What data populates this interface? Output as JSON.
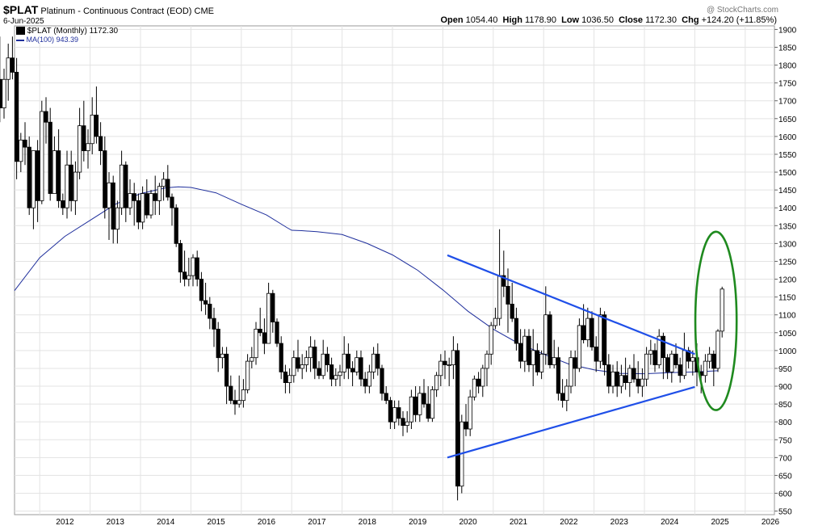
{
  "header": {
    "symbol": "$PLAT",
    "title": "Platinum - Continuous Contract (EOD)",
    "exchange": "CME",
    "date": "6-Jun-2025",
    "watermark": "@ StockCharts.com",
    "ohlc": {
      "open_label": "Open",
      "open": "1054.40",
      "high_label": "High",
      "high": "1178.90",
      "low_label": "Low",
      "low": "1036.50",
      "close_label": "Close",
      "close": "1172.30",
      "chg_label": "Chg",
      "chg": "+124.20 (+11.85%)"
    }
  },
  "legend": {
    "price_label": "$PLAT (Monthly) 1172.30",
    "ma_label": "MA(100) 943.39"
  },
  "colors": {
    "up": "#ffffff",
    "down": "#000000",
    "ma": "#1f2f9c",
    "trendline": "#1f4fe8",
    "circle": "#1f8a1f",
    "grid": "#e3e3e3"
  },
  "chart_data": {
    "type": "candlestick",
    "interval": "monthly",
    "x_tick_labels": [
      "2012",
      "2013",
      "2014",
      "2015",
      "2016",
      "2017",
      "2018",
      "2019",
      "2020",
      "2021",
      "2022",
      "2023",
      "2024",
      "2025",
      "2026"
    ],
    "y_tick_labels": [
      550,
      600,
      650,
      700,
      750,
      800,
      850,
      900,
      950,
      1000,
      1050,
      1100,
      1150,
      1200,
      1250,
      1300,
      1350,
      1400,
      1450,
      1500,
      1550,
      1600,
      1650,
      1700,
      1750,
      1800,
      1850,
      1900
    ],
    "ylim": [
      540,
      1910
    ],
    "xlim": [
      2011.5,
      2026.58
    ],
    "grid": true,
    "price_axis_position": "right",
    "candles": [
      [
        1780,
        1840,
        1700,
        1830
      ],
      [
        1830,
        1870,
        1720,
        1760
      ],
      [
        1760,
        1880,
        1640,
        1680
      ],
      [
        1680,
        1790,
        1650,
        1760
      ],
      [
        1760,
        1860,
        1700,
        1820
      ],
      [
        1820,
        1880,
        1760,
        1780
      ],
      [
        1780,
        1820,
        1480,
        1530
      ],
      [
        1530,
        1610,
        1500,
        1590
      ],
      [
        1590,
        1640,
        1520,
        1570
      ],
      [
        1570,
        1600,
        1380,
        1400
      ],
      [
        1400,
        1560,
        1340,
        1560
      ],
      [
        1560,
        1590,
        1360,
        1420
      ],
      [
        1420,
        1700,
        1410,
        1670
      ],
      [
        1670,
        1710,
        1580,
        1640
      ],
      [
        1640,
        1680,
        1420,
        1440
      ],
      [
        1440,
        1600,
        1440,
        1560
      ],
      [
        1560,
        1620,
        1400,
        1420
      ],
      [
        1420,
        1440,
        1380,
        1400
      ],
      [
        1400,
        1560,
        1370,
        1520
      ],
      [
        1520,
        1560,
        1390,
        1420
      ],
      [
        1420,
        1530,
        1380,
        1500
      ],
      [
        1500,
        1680,
        1480,
        1630
      ],
      [
        1630,
        1700,
        1530,
        1560
      ],
      [
        1560,
        1620,
        1510,
        1580
      ],
      [
        1580,
        1710,
        1550,
        1660
      ],
      [
        1660,
        1740,
        1580,
        1600
      ],
      [
        1600,
        1640,
        1520,
        1560
      ],
      [
        1560,
        1600,
        1370,
        1400
      ],
      [
        1400,
        1500,
        1310,
        1470
      ],
      [
        1470,
        1490,
        1300,
        1340
      ],
      [
        1340,
        1420,
        1300,
        1400
      ],
      [
        1400,
        1560,
        1380,
        1520
      ],
      [
        1520,
        1530,
        1360,
        1400
      ],
      [
        1400,
        1480,
        1380,
        1440
      ],
      [
        1440,
        1470,
        1350,
        1420
      ],
      [
        1420,
        1440,
        1340,
        1360
      ],
      [
        1360,
        1460,
        1340,
        1440
      ],
      [
        1440,
        1480,
        1370,
        1380
      ],
      [
        1380,
        1450,
        1370,
        1440
      ],
      [
        1440,
        1490,
        1380,
        1420
      ],
      [
        1420,
        1470,
        1380,
        1460
      ],
      [
        1460,
        1500,
        1420,
        1480
      ],
      [
        1480,
        1520,
        1420,
        1430
      ],
      [
        1430,
        1440,
        1350,
        1400
      ],
      [
        1400,
        1410,
        1290,
        1300
      ],
      [
        1300,
        1310,
        1190,
        1220
      ],
      [
        1220,
        1280,
        1180,
        1200
      ],
      [
        1200,
        1260,
        1180,
        1210
      ],
      [
        1210,
        1270,
        1180,
        1260
      ],
      [
        1260,
        1280,
        1180,
        1200
      ],
      [
        1200,
        1220,
        1110,
        1140
      ],
      [
        1140,
        1190,
        1100,
        1130
      ],
      [
        1130,
        1150,
        1060,
        1090
      ],
      [
        1090,
        1120,
        1010,
        1060
      ],
      [
        1060,
        1080,
        940,
        980
      ],
      [
        980,
        1010,
        950,
        990
      ],
      [
        990,
        1010,
        850,
        900
      ],
      [
        900,
        930,
        850,
        860
      ],
      [
        860,
        890,
        820,
        850
      ],
      [
        850,
        930,
        840,
        860
      ],
      [
        860,
        920,
        840,
        890
      ],
      [
        890,
        990,
        880,
        970
      ],
      [
        970,
        1010,
        950,
        980
      ],
      [
        980,
        1080,
        960,
        1060
      ],
      [
        1060,
        1120,
        1040,
        1050
      ],
      [
        1050,
        1090,
        990,
        1020
      ],
      [
        1020,
        1190,
        1020,
        1160
      ],
      [
        1160,
        1170,
        1050,
        1080
      ],
      [
        1080,
        1090,
        1010,
        1020
      ],
      [
        1020,
        1040,
        920,
        940
      ],
      [
        940,
        960,
        880,
        910
      ],
      [
        910,
        950,
        880,
        930
      ],
      [
        930,
        1000,
        910,
        980
      ],
      [
        980,
        1030,
        940,
        950
      ],
      [
        950,
        990,
        920,
        960
      ],
      [
        960,
        1000,
        940,
        980
      ],
      [
        980,
        1040,
        940,
        1010
      ],
      [
        1010,
        1030,
        920,
        950
      ],
      [
        950,
        970,
        920,
        930
      ],
      [
        930,
        1030,
        920,
        990
      ],
      [
        990,
        1010,
        940,
        960
      ],
      [
        960,
        980,
        900,
        920
      ],
      [
        920,
        950,
        900,
        930
      ],
      [
        930,
        960,
        900,
        940
      ],
      [
        940,
        1040,
        920,
        990
      ],
      [
        990,
        1020,
        920,
        950
      ],
      [
        950,
        970,
        900,
        940
      ],
      [
        940,
        1000,
        930,
        980
      ],
      [
        980,
        1000,
        900,
        920
      ],
      [
        920,
        940,
        880,
        900
      ],
      [
        900,
        960,
        880,
        940
      ],
      [
        940,
        1010,
        920,
        990
      ],
      [
        990,
        1020,
        930,
        950
      ],
      [
        950,
        960,
        860,
        880
      ],
      [
        880,
        900,
        850,
        860
      ],
      [
        860,
        870,
        780,
        800
      ],
      [
        800,
        860,
        780,
        840
      ],
      [
        840,
        860,
        790,
        810
      ],
      [
        810,
        830,
        760,
        790
      ],
      [
        790,
        830,
        770,
        800
      ],
      [
        800,
        890,
        780,
        870
      ],
      [
        870,
        900,
        800,
        820
      ],
      [
        820,
        900,
        800,
        880
      ],
      [
        880,
        920,
        840,
        850
      ],
      [
        850,
        900,
        800,
        810
      ],
      [
        810,
        900,
        800,
        890
      ],
      [
        890,
        940,
        870,
        930
      ],
      [
        930,
        990,
        900,
        970
      ],
      [
        970,
        1000,
        920,
        960
      ],
      [
        960,
        980,
        900,
        960
      ],
      [
        960,
        1040,
        920,
        1000
      ],
      [
        1000,
        1020,
        580,
        620
      ],
      [
        620,
        820,
        600,
        800
      ],
      [
        800,
        850,
        760,
        780
      ],
      [
        780,
        890,
        760,
        870
      ],
      [
        870,
        930,
        860,
        920
      ],
      [
        920,
        940,
        880,
        900
      ],
      [
        900,
        960,
        870,
        950
      ],
      [
        950,
        1000,
        900,
        990
      ],
      [
        990,
        1080,
        960,
        1070
      ],
      [
        1070,
        1120,
        1060,
        1090
      ],
      [
        1090,
        1340,
        1070,
        1210
      ],
      [
        1210,
        1280,
        1150,
        1180
      ],
      [
        1180,
        1230,
        1050,
        1130
      ],
      [
        1130,
        1190,
        1080,
        1090
      ],
      [
        1090,
        1120,
        1000,
        1020
      ],
      [
        1020,
        1060,
        950,
        970
      ],
      [
        970,
        1060,
        940,
        1040
      ],
      [
        1040,
        1060,
        940,
        960
      ],
      [
        960,
        1060,
        900,
        1000
      ],
      [
        1000,
        1020,
        930,
        940
      ],
      [
        940,
        1000,
        920,
        990
      ],
      [
        990,
        1180,
        960,
        1100
      ],
      [
        1100,
        1110,
        950,
        960
      ],
      [
        960,
        1030,
        950,
        980
      ],
      [
        980,
        1010,
        860,
        880
      ],
      [
        880,
        920,
        840,
        860
      ],
      [
        860,
        920,
        830,
        900
      ],
      [
        900,
        1000,
        880,
        980
      ],
      [
        980,
        1000,
        900,
        950
      ],
      [
        950,
        1090,
        940,
        1070
      ],
      [
        1070,
        1130,
        1020,
        1030
      ],
      [
        1030,
        1120,
        1010,
        1090
      ],
      [
        1090,
        1110,
        1000,
        1010
      ],
      [
        1010,
        1040,
        940,
        970
      ],
      [
        970,
        1120,
        950,
        1100
      ],
      [
        1100,
        1110,
        930,
        960
      ],
      [
        960,
        990,
        880,
        900
      ],
      [
        900,
        960,
        880,
        940
      ],
      [
        940,
        970,
        870,
        900
      ],
      [
        900,
        960,
        880,
        930
      ],
      [
        930,
        980,
        890,
        910
      ],
      [
        910,
        960,
        870,
        950
      ],
      [
        950,
        990,
        910,
        920
      ],
      [
        920,
        970,
        880,
        900
      ],
      [
        900,
        950,
        870,
        920
      ],
      [
        920,
        1010,
        900,
        990
      ],
      [
        990,
        1030,
        960,
        1000
      ],
      [
        1000,
        1020,
        940,
        960
      ],
      [
        960,
        1060,
        950,
        1040
      ],
      [
        1040,
        1050,
        920,
        980
      ],
      [
        980,
        990,
        920,
        940
      ],
      [
        940,
        1000,
        910,
        990
      ],
      [
        990,
        1020,
        950,
        960
      ],
      [
        960,
        980,
        910,
        930
      ],
      [
        930,
        1050,
        920,
        1000
      ],
      [
        1000,
        1010,
        950,
        970
      ],
      [
        970,
        1000,
        930,
        980
      ],
      [
        980,
        1020,
        900,
        940
      ],
      [
        940,
        960,
        880,
        930
      ],
      [
        930,
        990,
        910,
        970
      ],
      [
        970,
        1010,
        950,
        990
      ],
      [
        990,
        1000,
        900,
        950
      ],
      [
        950,
        1060,
        940,
        1054.4
      ],
      [
        1054.4,
        1178.9,
        1036.5,
        1172.3
      ]
    ],
    "series": [
      {
        "name": "MA(100)",
        "x": [
          2011.5,
          2012.0,
          2012.5,
          2013.0,
          2013.5,
          2014.0,
          2014.5,
          2014.75,
          2015.0,
          2015.5,
          2016.0,
          2016.5,
          2016.9,
          2017.0,
          2017.2,
          2017.5,
          2018.0,
          2018.5,
          2019.0,
          2019.5,
          2020.0,
          2020.5,
          2021.0,
          2021.5,
          2022.0,
          2022.5,
          2023.0,
          2023.5,
          2024.0,
          2024.5,
          2025.0,
          2025.45
        ],
        "values": [
          1168,
          1260,
          1320,
          1365,
          1410,
          1440,
          1456,
          1459,
          1457,
          1442,
          1410,
          1380,
          1345,
          1337,
          1336,
          1333,
          1325,
          1300,
          1268,
          1225,
          1170,
          1110,
          1060,
          1020,
          990,
          962,
          946,
          936,
          935,
          938,
          940,
          943.39
        ]
      }
    ],
    "annotations": [
      {
        "type": "trendline",
        "from": [
          2020.09,
          1267
        ],
        "to": [
          2025.0,
          990
        ]
      },
      {
        "type": "trendline",
        "from": [
          2020.09,
          700
        ],
        "to": [
          2025.0,
          898
        ]
      },
      {
        "type": "ellipse",
        "center": [
          2025.42,
          1083
        ],
        "rx_years": 0.41,
        "ry": 250
      }
    ]
  }
}
